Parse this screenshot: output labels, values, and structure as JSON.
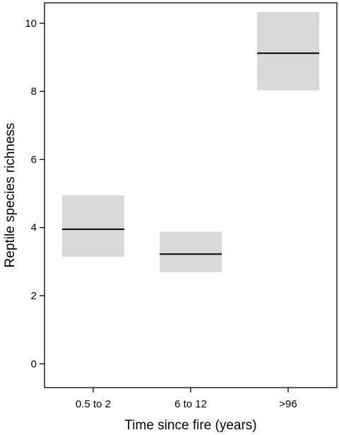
{
  "chart_data": {
    "type": "box",
    "xlabel": "Time since fire (years)",
    "ylabel": "Reptile species richness",
    "categories": [
      "0.5 to 2",
      "6 to 12",
      ">96"
    ],
    "ylim": [
      -0.7,
      10.6
    ],
    "yticks": [
      0,
      2,
      4,
      6,
      8,
      10
    ],
    "grid": false,
    "legend": "none",
    "series": [
      {
        "mean": [
          3.95,
          3.22,
          9.12
        ],
        "lower": [
          3.14,
          2.69,
          8.03
        ],
        "upper": [
          4.95,
          3.88,
          10.33
        ]
      }
    ],
    "colors": {
      "band": "#d9d9d9",
      "line": "#000000",
      "axis": "#000000"
    }
  }
}
